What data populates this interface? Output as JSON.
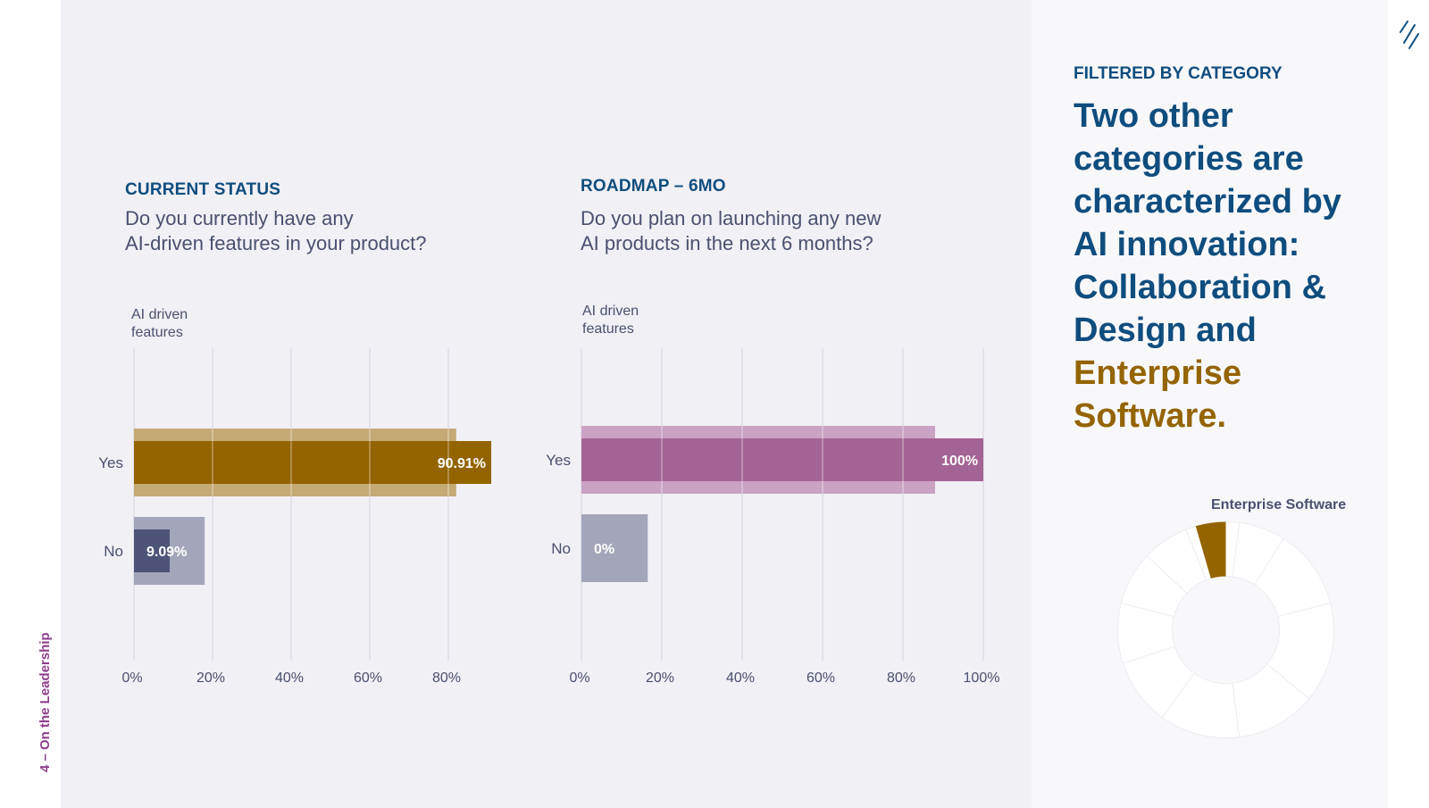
{
  "section_label": "4 – On the Leadership",
  "colors": {
    "gold": "#946400",
    "gold_light": "#c5aa75",
    "purple": "#a46395",
    "purple_light": "#caa2c4",
    "navy": "#4e5478",
    "gray_bar": "#a3a6bb",
    "headline": "#0f4d7e",
    "grid": "#d5d4dc"
  },
  "chart_data": [
    {
      "type": "bar",
      "orientation": "horizontal",
      "eyebrow": "CURRENT STATUS",
      "question": "Do you currently have any\nAI-driven features in your product?",
      "ylabel": "AI driven\nfeatures",
      "categories": [
        "Yes",
        "No"
      ],
      "series": [
        {
          "role": "background",
          "values": [
            82,
            18
          ]
        },
        {
          "role": "filtered",
          "values": [
            90.91,
            9.09
          ]
        }
      ],
      "data_labels": [
        "90.91%",
        "9.09%"
      ],
      "xlim": [
        0,
        100
      ],
      "ticks": [
        0,
        20,
        40,
        60,
        80
      ],
      "tick_labels": [
        "0%",
        "20%",
        "40%",
        "60%",
        "80%"
      ],
      "grid": true,
      "bar_colors": [
        "gold",
        "navy"
      ],
      "bg_colors": [
        "gold_light",
        "gray_bar"
      ]
    },
    {
      "type": "bar",
      "orientation": "horizontal",
      "eyebrow": "ROADMAP – 6MO",
      "question": "Do you plan on launching any new\nAI products in the next 6 months?",
      "ylabel": "AI driven\nfeatures",
      "categories": [
        "Yes",
        "No"
      ],
      "series": [
        {
          "role": "background",
          "values": [
            88,
            16.5
          ]
        },
        {
          "role": "filtered",
          "values": [
            100,
            0
          ]
        }
      ],
      "data_labels": [
        "100%",
        "0%"
      ],
      "xlim": [
        0,
        100
      ],
      "ticks": [
        0,
        20,
        40,
        60,
        80,
        100
      ],
      "tick_labels": [
        "0%",
        "20%",
        "40%",
        "60%",
        "80%",
        "100%"
      ],
      "grid": true,
      "bar_colors": [
        "purple",
        "navy"
      ],
      "bg_colors": [
        "purple_light",
        "gray_bar"
      ]
    },
    {
      "type": "pie",
      "label": "Enterprise Software",
      "segments": 10,
      "highlight_value": 4.5,
      "highlight_color": "gold"
    }
  ],
  "right_panel": {
    "eyebrow": "FILTERED BY CATEGORY",
    "headline_part1": "Two other categories are characterized by AI innovation: Collaboration & Design and",
    "headline_accent": "Enterprise Software."
  }
}
